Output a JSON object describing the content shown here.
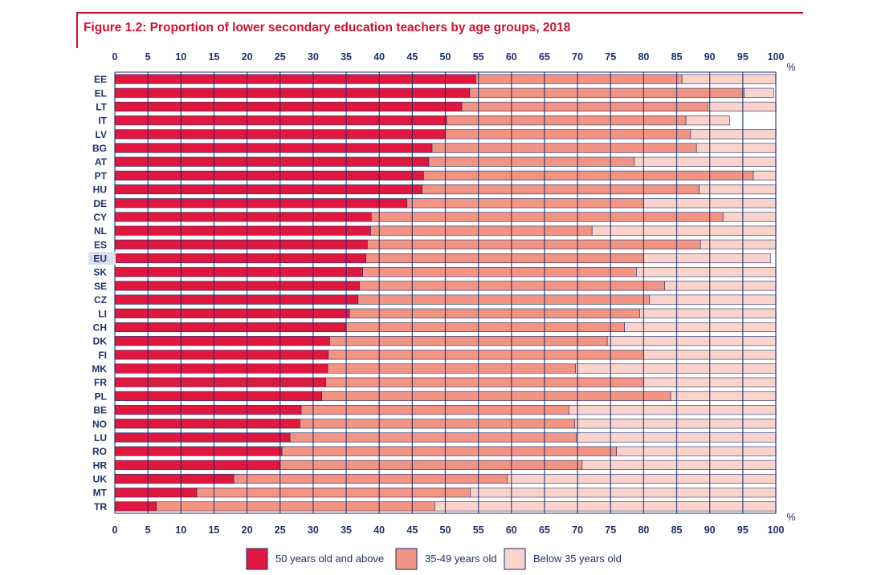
{
  "figure_title": "Figure 1.2: Proportion of lower secondary education teachers by age groups, 2018",
  "axis_unit": "%",
  "colors": {
    "s50": "#e0173f",
    "s35": "#f29484",
    "sb35": "#fad3cc",
    "axis_text": "#1f2f6b",
    "eu_highlight": "#d8dff0",
    "grid": "#1f2f6b",
    "title": "#d0102e"
  },
  "chart_data": {
    "type": "bar",
    "orientation": "horizontal",
    "stacked": true,
    "title": "Figure 1.2: Proportion of lower secondary education teachers by age groups, 2018",
    "xlim": [
      0,
      100
    ],
    "xticks": [
      0,
      5,
      10,
      15,
      20,
      25,
      30,
      35,
      40,
      45,
      50,
      55,
      60,
      65,
      70,
      75,
      80,
      85,
      90,
      95,
      100
    ],
    "xunit": "%",
    "grid": true,
    "legend_position": "bottom",
    "highlight_category": "EU",
    "categories": [
      "EE",
      "EL",
      "LT",
      "IT",
      "LV",
      "BG",
      "AT",
      "PT",
      "HU",
      "DE",
      "CY",
      "NL",
      "ES",
      "EU",
      "SK",
      "SE",
      "CZ",
      "LI",
      "CH",
      "DK",
      "FI",
      "MK",
      "FR",
      "PL",
      "BE",
      "NO",
      "LU",
      "RO",
      "HR",
      "UK",
      "MT",
      "TR"
    ],
    "series": [
      {
        "name": "50 years old and above",
        "color": "#e0173f",
        "values": [
          54.6,
          53.7,
          52.5,
          50.2,
          50.0,
          48.0,
          47.5,
          46.7,
          46.5,
          44.2,
          38.8,
          38.7,
          38.2,
          38.0,
          37.5,
          37.0,
          36.8,
          35.5,
          34.9,
          32.5,
          32.3,
          32.2,
          31.9,
          31.3,
          28.2,
          28.0,
          26.5,
          25.3,
          25.0,
          18.0,
          12.4,
          6.3
        ]
      },
      {
        "name": "35-49 years old",
        "color": "#f29484",
        "values": [
          31.2,
          41.5,
          37.2,
          36.2,
          37.1,
          40.0,
          31.1,
          49.9,
          41.9,
          35.8,
          53.2,
          33.5,
          50.4,
          42.0,
          41.4,
          46.2,
          44.1,
          43.9,
          42.2,
          42.0,
          47.7,
          37.5,
          48.1,
          52.8,
          40.5,
          41.6,
          43.3,
          50.6,
          45.7,
          41.4,
          41.4,
          42.1
        ]
      },
      {
        "name": "Below 35 years old",
        "color": "#fad3cc",
        "values": [
          14.2,
          4.5,
          10.3,
          6.6,
          12.9,
          12.0,
          21.4,
          3.4,
          11.6,
          20.0,
          8.0,
          27.8,
          11.4,
          19.2,
          21.1,
          16.8,
          19.1,
          20.6,
          22.9,
          25.5,
          20.0,
          30.3,
          20.0,
          15.9,
          31.3,
          30.4,
          30.2,
          24.1,
          29.3,
          40.6,
          46.2,
          51.6
        ]
      }
    ]
  }
}
